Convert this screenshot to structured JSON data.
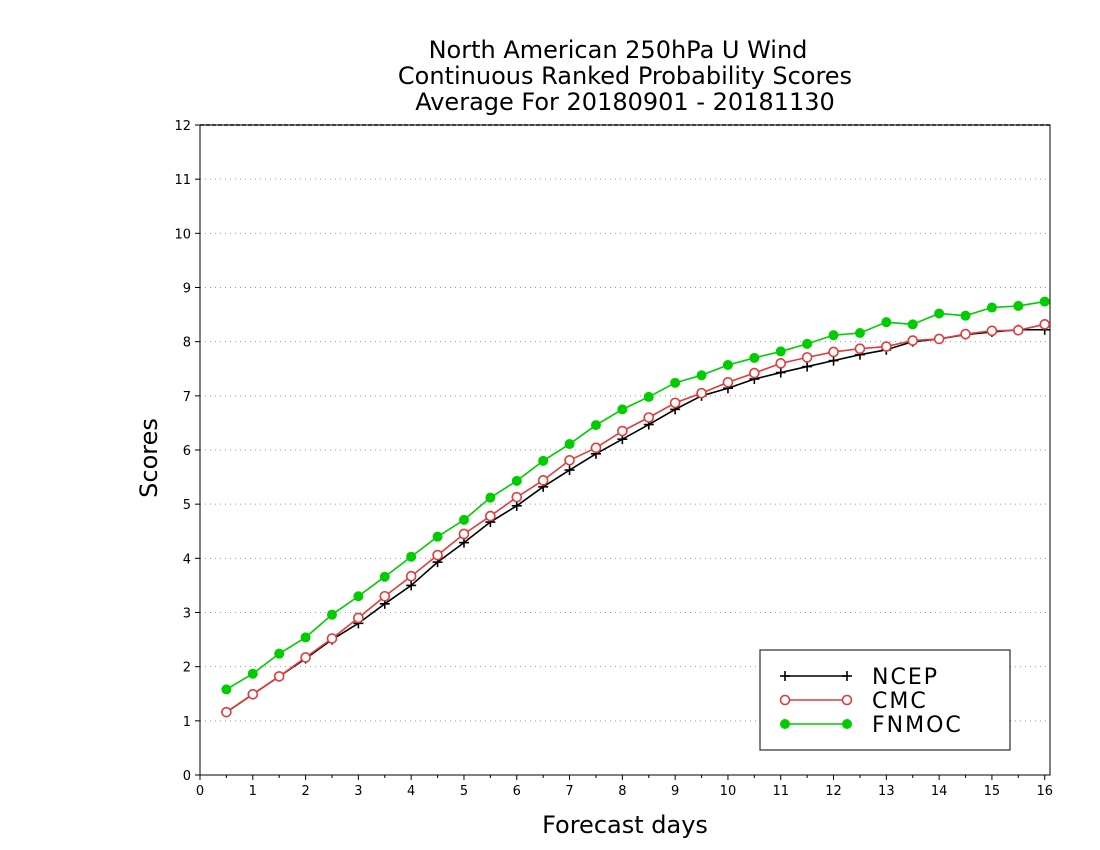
{
  "chart_data": {
    "type": "line",
    "title": [
      "North American 250hPa U Wind",
      "Continuous Ranked Probability Scores",
      "Average For 20180901 - 20181130"
    ],
    "xlabel": "Forecast days",
    "ylabel": "Scores",
    "xlim": [
      0,
      16.1
    ],
    "ylim": [
      0,
      12
    ],
    "xticks": [
      "0",
      "1",
      "2",
      "3",
      "4",
      "5",
      "6",
      "7",
      "8",
      "9",
      "10",
      "11",
      "12",
      "13",
      "14",
      "15",
      "16"
    ],
    "yticks": [
      "0",
      "1",
      "2",
      "3",
      "4",
      "5",
      "6",
      "7",
      "8",
      "9",
      "10",
      "11",
      "12"
    ],
    "grid": "horizontal-dotted",
    "legend_position": "bottom-right",
    "x": [
      0.5,
      1,
      1.5,
      2,
      2.5,
      3,
      3.5,
      4,
      4.5,
      5,
      5.5,
      6,
      6.5,
      7,
      7.5,
      8,
      8.5,
      9,
      9.5,
      10,
      10.5,
      11,
      11.5,
      12,
      12.5,
      13,
      13.5,
      14,
      14.5,
      15,
      15.5,
      16
    ],
    "series": [
      {
        "name": "NCEP",
        "color": "#000000",
        "marker": "plus",
        "values": [
          1.16,
          1.49,
          1.82,
          2.15,
          2.5,
          2.8,
          3.16,
          3.5,
          3.93,
          4.29,
          4.67,
          4.97,
          5.32,
          5.63,
          5.93,
          6.2,
          6.47,
          6.75,
          7.0,
          7.14,
          7.31,
          7.43,
          7.54,
          7.65,
          7.76,
          7.85,
          8.0,
          8.05,
          8.13,
          8.18,
          8.22,
          8.22
        ]
      },
      {
        "name": "CMC",
        "color": "#e03c3c",
        "marker": "open-circle",
        "values": [
          1.16,
          1.49,
          1.82,
          2.17,
          2.52,
          2.9,
          3.3,
          3.67,
          4.06,
          4.45,
          4.78,
          5.13,
          5.44,
          5.81,
          6.04,
          6.35,
          6.6,
          6.87,
          7.05,
          7.25,
          7.42,
          7.6,
          7.71,
          7.81,
          7.87,
          7.91,
          8.02,
          8.05,
          8.14,
          8.2,
          8.21,
          8.32
        ]
      },
      {
        "name": "FNMOC",
        "color": "#00cc00",
        "marker": "filled-circle",
        "values": [
          1.58,
          1.87,
          2.24,
          2.54,
          2.96,
          3.3,
          3.66,
          4.03,
          4.4,
          4.71,
          5.12,
          5.43,
          5.8,
          6.11,
          6.46,
          6.75,
          6.98,
          7.24,
          7.38,
          7.57,
          7.7,
          7.82,
          7.96,
          8.12,
          8.16,
          8.36,
          8.32,
          8.52,
          8.48,
          8.63,
          8.66,
          8.74
        ]
      }
    ]
  }
}
